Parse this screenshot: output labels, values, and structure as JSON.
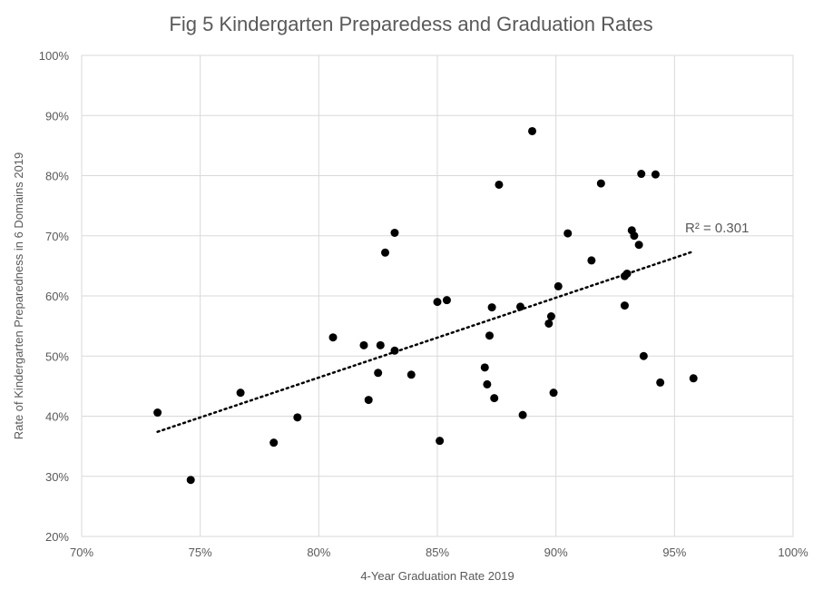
{
  "chart_data": {
    "type": "scatter",
    "title": "Fig 5 Kindergarten Preparedess and Graduation Rates",
    "xlabel": "4-Year Graduation Rate 2019",
    "ylabel": "Rate of Kindergarten Preparedness in 6 Domains 2019",
    "xlim": [
      70,
      100
    ],
    "ylim": [
      20,
      100
    ],
    "x_ticks": [
      "70%",
      "75%",
      "80%",
      "85%",
      "90%",
      "95%",
      "100%"
    ],
    "y_ticks": [
      "20%",
      "30%",
      "40%",
      "50%",
      "60%",
      "70%",
      "80%",
      "90%",
      "100%"
    ],
    "grid": true,
    "points": [
      [
        73.2,
        40.6
      ],
      [
        74.6,
        29.4
      ],
      [
        76.7,
        43.9
      ],
      [
        78.1,
        35.6
      ],
      [
        79.1,
        39.8
      ],
      [
        80.6,
        53.1
      ],
      [
        81.9,
        51.8
      ],
      [
        82.1,
        42.7
      ],
      [
        82.5,
        47.2
      ],
      [
        82.6,
        51.8
      ],
      [
        82.8,
        67.2
      ],
      [
        83.2,
        70.5
      ],
      [
        83.2,
        50.9
      ],
      [
        83.9,
        46.9
      ],
      [
        85.0,
        59.0
      ],
      [
        85.1,
        35.9
      ],
      [
        85.4,
        59.3
      ],
      [
        87.0,
        48.1
      ],
      [
        87.1,
        45.3
      ],
      [
        87.2,
        53.4
      ],
      [
        87.3,
        58.1
      ],
      [
        87.4,
        43.0
      ],
      [
        87.6,
        78.5
      ],
      [
        88.5,
        58.2
      ],
      [
        88.6,
        40.2
      ],
      [
        89.0,
        87.4
      ],
      [
        89.7,
        55.4
      ],
      [
        89.8,
        56.6
      ],
      [
        89.9,
        43.9
      ],
      [
        90.1,
        61.6
      ],
      [
        90.5,
        70.4
      ],
      [
        91.5,
        65.9
      ],
      [
        91.9,
        78.7
      ],
      [
        92.9,
        58.4
      ],
      [
        92.9,
        63.3
      ],
      [
        93.0,
        63.7
      ],
      [
        93.2,
        70.9
      ],
      [
        93.3,
        70.0
      ],
      [
        93.5,
        68.5
      ],
      [
        93.6,
        80.3
      ],
      [
        93.7,
        50.0
      ],
      [
        94.2,
        80.2
      ],
      [
        94.4,
        45.6
      ],
      [
        95.8,
        46.3
      ]
    ],
    "trendline": {
      "type": "linear",
      "x_start": 73.2,
      "y_start": 37.4,
      "x_end": 95.8,
      "y_end": 67.4
    },
    "annotation": "R² = 0.301"
  }
}
